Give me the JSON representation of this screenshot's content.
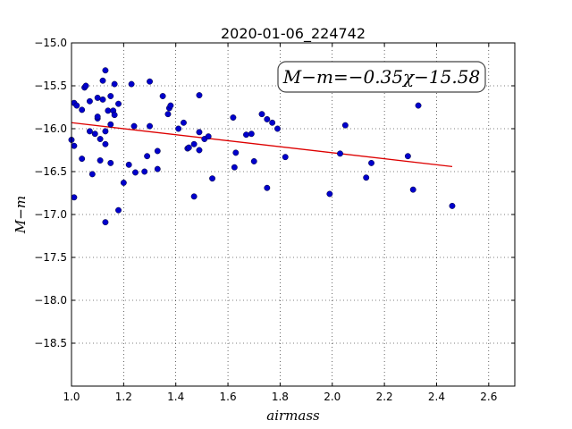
{
  "chart_data": {
    "type": "scatter",
    "title": "2020-01-06_224742",
    "xlabel": "airmass",
    "ylabel": "M−m",
    "xlim": [
      1.0,
      2.7
    ],
    "ylim": [
      -15.0,
      -19.0
    ],
    "y_inverted": true,
    "x_ticks": [
      1.0,
      1.2,
      1.4,
      1.6,
      1.8,
      2.0,
      2.2,
      2.4,
      2.6
    ],
    "x_tick_labels": [
      "1.0",
      "1.2",
      "1.4",
      "1.6",
      "1.8",
      "2.0",
      "2.2",
      "2.4",
      "2.6"
    ],
    "y_ticks": [
      -15.0,
      -15.5,
      -16.0,
      -16.5,
      -17.0,
      -17.5,
      -18.0,
      -18.5
    ],
    "y_tick_labels": [
      "−15.0",
      "−15.5",
      "−16.0",
      "−16.5",
      "−17.0",
      "−17.5",
      "−18.0",
      "−18.5"
    ],
    "grid": true,
    "annotation": "M−m=−0.35χ−15.58",
    "point_color": "#0000cc",
    "fit_color": "#dd0000",
    "fit_line": {
      "slope": -0.35,
      "intercept": -15.58,
      "x_range": [
        1.0,
        2.46
      ]
    },
    "points": [
      [
        1.0,
        -16.13
      ],
      [
        1.01,
        -15.7
      ],
      [
        1.01,
        -16.2
      ],
      [
        1.02,
        -15.73
      ],
      [
        1.01,
        -16.8
      ],
      [
        1.04,
        -16.35
      ],
      [
        1.04,
        -15.78
      ],
      [
        1.05,
        -15.52
      ],
      [
        1.055,
        -15.5
      ],
      [
        1.07,
        -15.68
      ],
      [
        1.07,
        -16.03
      ],
      [
        1.08,
        -16.53
      ],
      [
        1.09,
        -16.06
      ],
      [
        1.1,
        -15.88
      ],
      [
        1.1,
        -15.86
      ],
      [
        1.1,
        -15.64
      ],
      [
        1.11,
        -16.12
      ],
      [
        1.11,
        -16.37
      ],
      [
        1.12,
        -15.44
      ],
      [
        1.12,
        -15.66
      ],
      [
        1.13,
        -15.32
      ],
      [
        1.13,
        -16.03
      ],
      [
        1.13,
        -16.18
      ],
      [
        1.13,
        -17.09
      ],
      [
        1.14,
        -15.79
      ],
      [
        1.15,
        -15.95
      ],
      [
        1.15,
        -16.4
      ],
      [
        1.15,
        -15.62
      ],
      [
        1.16,
        -15.79
      ],
      [
        1.165,
        -15.84
      ],
      [
        1.165,
        -15.48
      ],
      [
        1.18,
        -15.71
      ],
      [
        1.18,
        -16.95
      ],
      [
        1.2,
        -16.63
      ],
      [
        1.22,
        -16.42
      ],
      [
        1.23,
        -15.48
      ],
      [
        1.24,
        -15.97
      ],
      [
        1.245,
        -16.51
      ],
      [
        1.28,
        -16.5
      ],
      [
        1.29,
        -16.32
      ],
      [
        1.3,
        -15.97
      ],
      [
        1.3,
        -15.45
      ],
      [
        1.33,
        -16.47
      ],
      [
        1.33,
        -16.26
      ],
      [
        1.35,
        -15.62
      ],
      [
        1.37,
        -15.83
      ],
      [
        1.375,
        -15.76
      ],
      [
        1.38,
        -15.73
      ],
      [
        1.41,
        -16.0
      ],
      [
        1.43,
        -15.93
      ],
      [
        1.445,
        -16.23
      ],
      [
        1.45,
        -16.22
      ],
      [
        1.47,
        -16.18
      ],
      [
        1.47,
        -16.79
      ],
      [
        1.49,
        -15.61
      ],
      [
        1.49,
        -16.04
      ],
      [
        1.49,
        -16.25
      ],
      [
        1.51,
        -16.12
      ],
      [
        1.525,
        -16.09
      ],
      [
        1.54,
        -16.58
      ],
      [
        1.62,
        -15.87
      ],
      [
        1.625,
        -16.45
      ],
      [
        1.63,
        -16.28
      ],
      [
        1.67,
        -16.07
      ],
      [
        1.69,
        -16.06
      ],
      [
        1.7,
        -16.38
      ],
      [
        1.73,
        -15.83
      ],
      [
        1.75,
        -16.69
      ],
      [
        1.75,
        -15.89
      ],
      [
        1.77,
        -15.93
      ],
      [
        1.79,
        -16.0
      ],
      [
        1.82,
        -16.33
      ],
      [
        1.99,
        -16.76
      ],
      [
        2.03,
        -16.29
      ],
      [
        2.05,
        -15.96
      ],
      [
        2.13,
        -16.57
      ],
      [
        2.15,
        -16.4
      ],
      [
        2.29,
        -16.32
      ],
      [
        2.31,
        -16.71
      ],
      [
        2.33,
        -15.73
      ],
      [
        2.46,
        -16.9
      ]
    ]
  }
}
